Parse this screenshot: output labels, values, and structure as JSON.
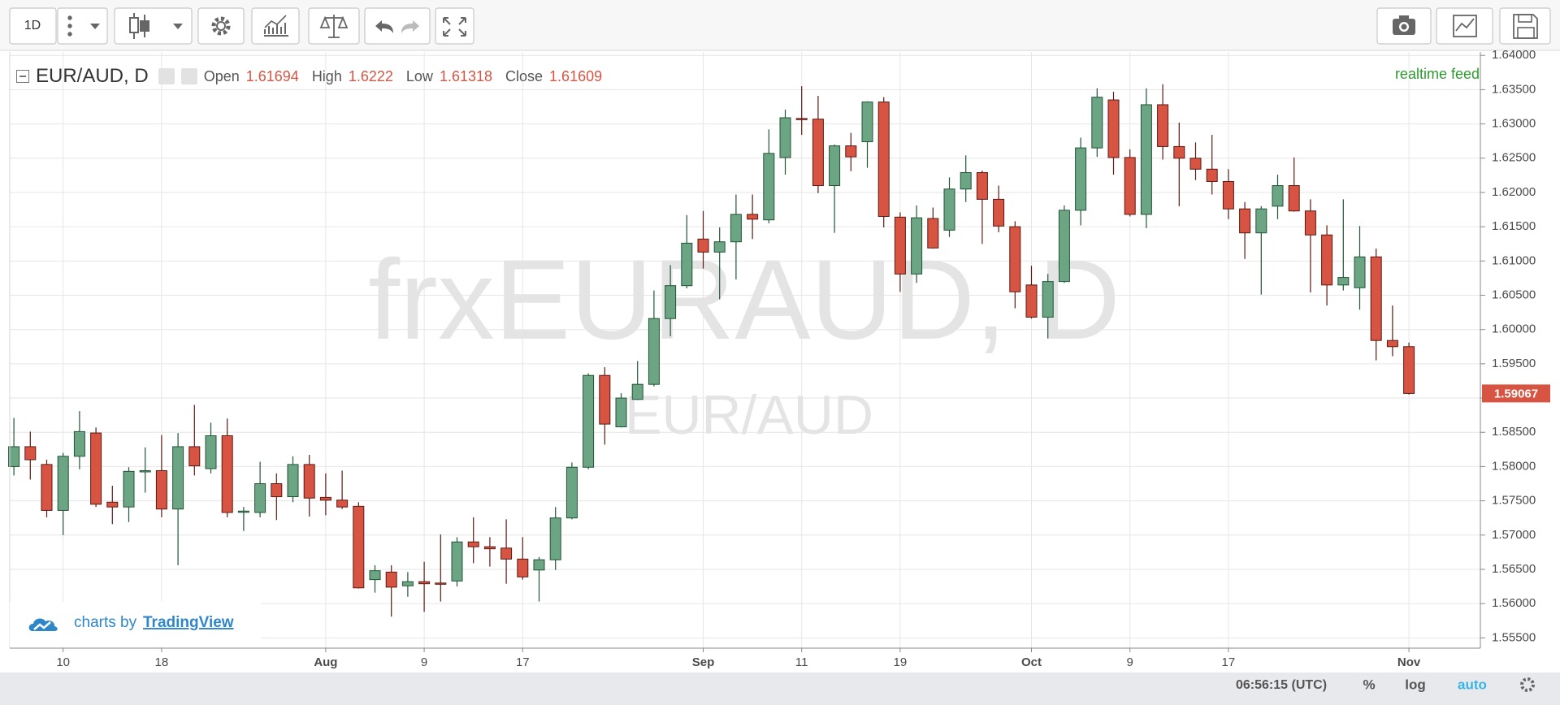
{
  "toolbar": {
    "interval": "1D"
  },
  "chart_data": {
    "type": "candlestick",
    "legend": {
      "symbol": "EUR/AUD, D",
      "open_label": "Open",
      "open": 1.61694,
      "high_label": "High",
      "high": 1.6222,
      "low_label": "Low",
      "low": 1.61318,
      "close_label": "Close",
      "close": 1.61609
    },
    "feed_label": "realtime feed",
    "watermark": "frxEURAUD, D",
    "watermark_sub": "EUR/AUD",
    "categories": [
      null,
      null,
      null,
      "10",
      null,
      null,
      null,
      null,
      null,
      "18",
      null,
      null,
      null,
      null,
      null,
      null,
      null,
      null,
      null,
      "Aug",
      null,
      null,
      null,
      null,
      null,
      "9",
      null,
      null,
      null,
      null,
      null,
      "17",
      null,
      null,
      null,
      null,
      null,
      null,
      null,
      null,
      null,
      null,
      "Sep",
      null,
      null,
      null,
      null,
      null,
      "11",
      null,
      null,
      null,
      null,
      null,
      "19",
      null,
      null,
      null,
      null,
      null,
      null,
      null,
      "Oct",
      null,
      null,
      null,
      null,
      null,
      "9",
      null,
      null,
      null,
      null,
      null,
      "17",
      null,
      null,
      null,
      null,
      null,
      null,
      null,
      null,
      null,
      null,
      "Nov"
    ],
    "open": [
      1.58,
      1.5829,
      1.5803,
      1.5736,
      1.5815,
      1.5849,
      1.5748,
      1.5741,
      1.5793,
      1.5794,
      1.5738,
      1.5829,
      1.5797,
      1.5845,
      1.5734,
      1.5733,
      1.5775,
      1.5756,
      1.5803,
      1.5755,
      1.5751,
      1.5742,
      1.5635,
      1.5646,
      1.5626,
      1.5632,
      1.563,
      1.5633,
      1.569,
      1.5683,
      1.5681,
      1.5665,
      1.5649,
      1.5664,
      1.5725,
      1.5799,
      1.5933,
      1.5858,
      1.5898,
      1.592,
      1.6016,
      1.6064,
      1.6132,
      1.6113,
      1.6128,
      1.6168,
      1.616,
      1.6251,
      1.6308,
      1.6307,
      1.621,
      1.6268,
      1.6274,
      1.6332,
      1.6164,
      1.6081,
      1.6162,
      1.6145,
      1.6205,
      1.6229,
      1.619,
      1.615,
      1.6065,
      1.6018,
      1.607,
      1.6174,
      1.6265,
      1.6335,
      1.6251,
      1.6168,
      1.6328,
      1.6267,
      1.625,
      1.6234,
      1.6216,
      1.6176,
      1.6141,
      1.618,
      1.621,
      1.6173,
      1.6138,
      1.6065,
      1.6061,
      1.6106,
      1.5984,
      1.5975
    ],
    "high": [
      1.5871,
      1.5851,
      1.581,
      1.582,
      1.5881,
      1.5857,
      1.5772,
      1.5799,
      1.5828,
      1.5846,
      1.5849,
      1.589,
      1.5864,
      1.587,
      1.5741,
      1.5807,
      1.579,
      1.5815,
      1.5817,
      1.579,
      1.5794,
      1.5748,
      1.5656,
      1.5656,
      1.5646,
      1.5661,
      1.5701,
      1.5697,
      1.5726,
      1.5697,
      1.5723,
      1.5697,
      1.5668,
      1.5741,
      1.5806,
      1.5936,
      1.5945,
      1.5907,
      1.5954,
      1.6057,
      1.6094,
      1.6167,
      1.6173,
      1.6149,
      1.6197,
      1.6197,
      1.6292,
      1.6321,
      1.6355,
      1.6341,
      1.627,
      1.6287,
      1.6333,
      1.6339,
      1.6171,
      1.6181,
      1.6178,
      1.6222,
      1.6254,
      1.6232,
      1.621,
      1.6158,
      1.6093,
      1.6081,
      1.6181,
      1.628,
      1.6352,
      1.6347,
      1.6263,
      1.6352,
      1.6358,
      1.6302,
      1.6273,
      1.6284,
      1.6234,
      1.6186,
      1.618,
      1.6226,
      1.6251,
      1.619,
      1.6152,
      1.619,
      1.6151,
      1.6118,
      1.6035,
      1.5981
    ],
    "low": [
      1.5787,
      1.5781,
      1.5726,
      1.57,
      1.5796,
      1.5741,
      1.5716,
      1.5719,
      1.5762,
      1.5726,
      1.5656,
      1.5787,
      1.579,
      1.5726,
      1.5706,
      1.5726,
      1.5722,
      1.5748,
      1.5727,
      1.5729,
      1.5738,
      1.5622,
      1.5616,
      1.5581,
      1.561,
      1.5588,
      1.5603,
      1.5625,
      1.5659,
      1.5654,
      1.5629,
      1.5635,
      1.5603,
      1.5649,
      1.5723,
      1.5796,
      1.5832,
      1.5857,
      1.5897,
      1.5917,
      1.599,
      1.606,
      1.6089,
      1.6044,
      1.6073,
      1.6132,
      1.6155,
      1.6226,
      1.6284,
      1.6199,
      1.6141,
      1.6231,
      1.6236,
      1.6149,
      1.6055,
      1.6068,
      1.6118,
      1.6135,
      1.6186,
      1.6125,
      1.6142,
      1.6031,
      1.6016,
      1.5987,
      1.6068,
      1.6152,
      1.6252,
      1.6226,
      1.6165,
      1.6148,
      1.6248,
      1.618,
      1.6218,
      1.6197,
      1.6161,
      1.6103,
      1.6051,
      1.6161,
      1.6172,
      1.6054,
      1.6035,
      1.6057,
      1.6029,
      1.5955,
      1.5961,
      1.5905
    ],
    "close": [
      1.5829,
      1.581,
      1.5736,
      1.5815,
      1.5851,
      1.5745,
      1.5741,
      1.5793,
      1.5794,
      1.5738,
      1.5829,
      1.5801,
      1.5845,
      1.5733,
      1.5735,
      1.5775,
      1.5756,
      1.5803,
      1.5754,
      1.5751,
      1.5741,
      1.5623,
      1.5648,
      1.5624,
      1.5632,
      1.5629,
      1.5629,
      1.569,
      1.5683,
      1.568,
      1.5665,
      1.5639,
      1.5664,
      1.5725,
      1.5799,
      1.5933,
      1.5862,
      1.59,
      1.592,
      1.6016,
      1.6064,
      1.6126,
      1.6113,
      1.6128,
      1.6168,
      1.6161,
      1.6257,
      1.6309,
      1.6307,
      1.621,
      1.6268,
      1.6252,
      1.6332,
      1.6165,
      1.6081,
      1.6163,
      1.6119,
      1.6205,
      1.6229,
      1.619,
      1.6151,
      1.6055,
      1.6018,
      1.607,
      1.6174,
      1.6265,
      1.6339,
      1.6251,
      1.6168,
      1.6328,
      1.6267,
      1.625,
      1.6234,
      1.6216,
      1.6176,
      1.6141,
      1.6176,
      1.621,
      1.6173,
      1.6138,
      1.6065,
      1.6076,
      1.6106,
      1.5984,
      1.5975,
      1.59067
    ],
    "up_color": "#6ba583",
    "up_border": "#225437",
    "down_color": "#d75442",
    "down_border": "#5b1a13",
    "ylim": [
      1.5535,
      1.6405
    ],
    "yticks": [
      {
        "value": 1.555,
        "label": "1.55500"
      },
      {
        "value": 1.56,
        "label": "1.56000"
      },
      {
        "value": 1.565,
        "label": "1.56500"
      },
      {
        "value": 1.57,
        "label": "1.57000"
      },
      {
        "value": 1.575,
        "label": "1.57500"
      },
      {
        "value": 1.58,
        "label": "1.58000"
      },
      {
        "value": 1.585,
        "label": "1.58500"
      },
      {
        "value": 1.59,
        "label": "1.59000"
      },
      {
        "value": 1.595,
        "label": "1.59500"
      },
      {
        "value": 1.6,
        "label": "1.60000"
      },
      {
        "value": 1.605,
        "label": "1.60500"
      },
      {
        "value": 1.61,
        "label": "1.61000"
      },
      {
        "value": 1.615,
        "label": "1.61500"
      },
      {
        "value": 1.62,
        "label": "1.62000"
      },
      {
        "value": 1.625,
        "label": "1.62500"
      },
      {
        "value": 1.63,
        "label": "1.63000"
      },
      {
        "value": 1.635,
        "label": "1.63500"
      },
      {
        "value": 1.64,
        "label": "1.64000"
      }
    ],
    "grid": true,
    "log_scale": false
  },
  "branding": {
    "prefix": "charts by",
    "name": "TradingView"
  },
  "status_bar": {
    "time": "06:56:15 (UTC)",
    "percent": "%",
    "log": "log",
    "auto": "auto"
  }
}
